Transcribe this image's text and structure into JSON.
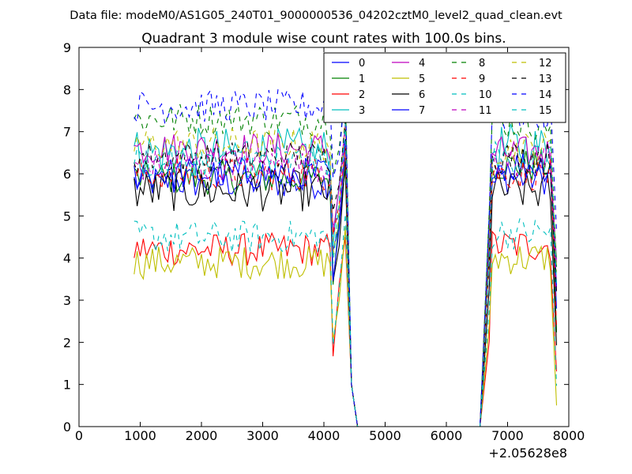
{
  "figure": {
    "suptitle": "Data file: modeM0/AS1G05_240T01_9000000536_04202cztM0_level2_quad_clean.evt",
    "title": "Quadrant 3 module wise count rates with 100.0s bins.",
    "offset_label": "+2.05628e8"
  },
  "chart_data": {
    "type": "line",
    "title": "Quadrant 3 module wise count rates with 100.0s bins.",
    "xlabel": "",
    "ylabel": "",
    "xlim": [
      0,
      8000
    ],
    "ylim": [
      0,
      9
    ],
    "x_offset": 205628000,
    "x_ticks": [
      0,
      1000,
      2000,
      3000,
      4000,
      5000,
      6000,
      7000,
      8000
    ],
    "y_ticks": [
      0,
      1,
      2,
      3,
      4,
      5,
      6,
      7,
      8,
      9
    ],
    "x_tick_labels": [
      "0",
      "1000",
      "2000",
      "3000",
      "4000",
      "5000",
      "6000",
      "7000",
      "8000"
    ],
    "y_tick_labels": [
      "0",
      "1",
      "2",
      "3",
      "4",
      "5",
      "6",
      "7",
      "8",
      "9"
    ],
    "grid": false,
    "legend_position": "top-right",
    "segments": [
      {
        "x_start": 900,
        "x_end": 4400
      },
      {
        "x_start": 4400,
        "x_end": 6600,
        "value": 0
      },
      {
        "x_start": 6600,
        "x_end": 7800
      }
    ],
    "series": [
      {
        "name": "0",
        "color": "#0000ff",
        "dash": "solid",
        "level1": 5.8,
        "level2": 5.9,
        "noise": 0.2
      },
      {
        "name": "1",
        "color": "#008000",
        "dash": "solid",
        "level1": 5.9,
        "level2": 6.2,
        "noise": 0.2
      },
      {
        "name": "2",
        "color": "#ff0000",
        "dash": "solid",
        "level1": 4.2,
        "level2": 4.3,
        "noise": 0.2
      },
      {
        "name": "3",
        "color": "#00bfbf",
        "dash": "solid",
        "level1": 6.5,
        "level2": 6.6,
        "noise": 0.3
      },
      {
        "name": "4",
        "color": "#bf00bf",
        "dash": "solid",
        "level1": 6.6,
        "level2": 6.5,
        "noise": 0.2
      },
      {
        "name": "5",
        "color": "#bfbf00",
        "dash": "solid",
        "level1": 3.9,
        "level2": 4.0,
        "noise": 0.2
      },
      {
        "name": "6",
        "color": "#000000",
        "dash": "solid",
        "level1": 5.6,
        "level2": 5.6,
        "noise": 0.25
      },
      {
        "name": "7",
        "color": "#0000ff",
        "dash": "solid",
        "level1": 6.0,
        "level2": 6.2,
        "noise": 0.2
      },
      {
        "name": "8",
        "color": "#008000",
        "dash": "dashed",
        "level1": 7.3,
        "level2": 7.2,
        "noise": 0.2
      },
      {
        "name": "9",
        "color": "#ff0000",
        "dash": "dashed",
        "level1": 6.0,
        "level2": 6.0,
        "noise": 0.2
      },
      {
        "name": "10",
        "color": "#00bfbf",
        "dash": "dashed",
        "level1": 4.5,
        "level2": 4.6,
        "noise": 0.2
      },
      {
        "name": "11",
        "color": "#bf00bf",
        "dash": "dashed",
        "level1": 6.2,
        "level2": 6.3,
        "noise": 0.2
      },
      {
        "name": "12",
        "color": "#bfbf00",
        "dash": "dashed",
        "level1": 6.7,
        "level2": 6.6,
        "noise": 0.2
      },
      {
        "name": "13",
        "color": "#000000",
        "dash": "dashed",
        "level1": 6.4,
        "level2": 6.4,
        "noise": 0.2
      },
      {
        "name": "14",
        "color": "#0000ff",
        "dash": "dashed",
        "level1": 7.6,
        "level2": 7.4,
        "noise": 0.2
      },
      {
        "name": "15",
        "color": "#00bfbf",
        "dash": "dashed",
        "level1": 6.3,
        "level2": 6.4,
        "noise": 0.2
      }
    ]
  }
}
